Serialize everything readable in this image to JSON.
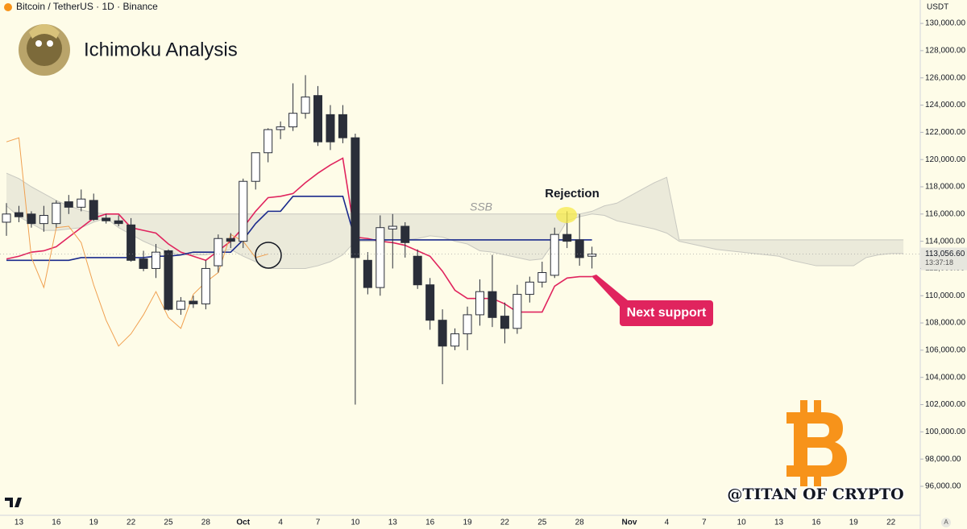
{
  "header": "Bitcoin / TetherUS · 1D · Binance",
  "title": "Ichimoku Analysis",
  "currency": "USDT",
  "watermark": "@TITAN OF CRYPTO",
  "auto_label": "A",
  "annotations": {
    "rejection": "Rejection",
    "ssb": "SSB",
    "next_support": "Next support"
  },
  "chart_data": {
    "type": "candlestick",
    "categories": [
      null,
      "13",
      null,
      null,
      "16",
      null,
      null,
      "19",
      null,
      null,
      "22",
      null,
      null,
      "25",
      null,
      null,
      "28",
      null,
      null,
      "Oct",
      null,
      null,
      "4",
      null,
      null,
      "7",
      null,
      null,
      "10",
      null,
      null,
      "13",
      null,
      null,
      "16",
      null,
      null,
      "19",
      null,
      null,
      "22",
      null,
      null,
      "25",
      null,
      null,
      "28",
      null,
      null,
      null,
      "Nov",
      null,
      null,
      "4",
      null,
      null,
      "7",
      null,
      null,
      "10",
      null,
      null,
      "13",
      null,
      null,
      "16",
      null,
      null,
      "19",
      null,
      null,
      "22",
      null
    ],
    "candles": {
      "up_color": "#ffffff",
      "down_color": "#2a2e39",
      "open": [
        115400,
        116100,
        116000,
        115300,
        115300,
        116900,
        116500,
        117000,
        115700,
        115500,
        115200,
        112700,
        112000,
        113300,
        109000,
        109600,
        109400,
        112200,
        114200,
        114000,
        118400,
        120500,
        122200,
        122400,
        123400,
        124700,
        123300,
        123300,
        121600,
        112600,
        110600,
        114900,
        115100,
        112900,
        110800,
        108200,
        106300,
        107200,
        108600,
        110300,
        108500,
        107600,
        110100,
        111000,
        111500,
        114500,
        114100,
        112900,
        null,
        null,
        null,
        null,
        null,
        null,
        null,
        null,
        null,
        null,
        null,
        null,
        null,
        null,
        null,
        null,
        null,
        null,
        null,
        null,
        null,
        null,
        null,
        null,
        null
      ],
      "high": [
        116800,
        116600,
        116200,
        116600,
        117000,
        117400,
        117800,
        117500,
        116000,
        115900,
        115700,
        113300,
        113800,
        113400,
        109900,
        110000,
        112600,
        114500,
        114600,
        118600,
        120500,
        122300,
        122800,
        125600,
        126200,
        125400,
        124000,
        124000,
        121900,
        113200,
        115900,
        116000,
        115400,
        113400,
        111300,
        109000,
        107600,
        109200,
        111200,
        113000,
        109500,
        110800,
        111400,
        112500,
        115000,
        116200,
        116000,
        113600,
        null,
        null,
        null,
        null,
        null,
        null,
        null,
        null,
        null,
        null,
        null,
        null,
        null,
        null,
        null,
        null,
        null,
        null,
        null,
        null,
        null,
        null,
        null,
        null,
        null
      ],
      "low": [
        114400,
        115400,
        115000,
        114700,
        115000,
        116000,
        116200,
        115500,
        115300,
        115100,
        112500,
        111800,
        111300,
        108900,
        108600,
        109100,
        109000,
        111700,
        113500,
        113500,
        117800,
        119800,
        121500,
        122100,
        123000,
        121000,
        120700,
        121200,
        102000,
        110100,
        110000,
        112000,
        112800,
        110500,
        107500,
        103500,
        106000,
        106000,
        107800,
        107700,
        106500,
        107200,
        109500,
        110600,
        111300,
        113500,
        112200,
        112000,
        null,
        null,
        null,
        null,
        null,
        null,
        null,
        null,
        null,
        null,
        null,
        null,
        null,
        null,
        null,
        null,
        null,
        null,
        null,
        null,
        null,
        null,
        null,
        null,
        null
      ],
      "close": [
        116000,
        115800,
        115300,
        115900,
        116800,
        116500,
        117100,
        115600,
        115500,
        115300,
        112600,
        112000,
        113200,
        109000,
        109600,
        109400,
        112000,
        114200,
        114000,
        118400,
        120500,
        122200,
        122400,
        123400,
        124600,
        121300,
        121300,
        121600,
        112800,
        110600,
        115000,
        115100,
        113900,
        110800,
        108200,
        106300,
        107200,
        108600,
        110300,
        108400,
        107600,
        110100,
        111000,
        111700,
        114500,
        114000,
        112800,
        113056.6,
        null,
        null,
        null,
        null,
        null,
        null,
        null,
        null,
        null,
        null,
        null,
        null,
        null,
        null,
        null,
        null,
        null,
        null,
        null,
        null,
        null,
        null,
        null,
        null,
        null
      ]
    },
    "lines": [
      {
        "color": "#e0245e",
        "values": [
          112700,
          112900,
          113200,
          113300,
          113600,
          114300,
          115000,
          115700,
          116000,
          116000,
          115000,
          114800,
          114600,
          113800,
          113200,
          112900,
          112600,
          113300,
          114000,
          115000,
          116200,
          117200,
          117300,
          117500,
          118300,
          119000,
          119600,
          120100,
          114300,
          114200,
          114000,
          113900,
          113700,
          113300,
          112900,
          111800,
          110400,
          109800,
          109800,
          109800,
          109400,
          108800,
          108800,
          108800,
          110700,
          111300,
          111400,
          111400,
          null,
          null,
          null,
          null,
          null,
          null,
          null,
          null,
          null,
          null,
          null,
          null,
          null,
          null,
          null,
          null,
          null,
          null,
          null,
          null,
          null,
          null,
          null,
          null,
          null
        ]
      },
      {
        "color": "#1a2a8c",
        "values": [
          112600,
          112600,
          112600,
          112600,
          112600,
          112600,
          112800,
          112800,
          112800,
          112800,
          112800,
          112800,
          112900,
          112900,
          113000,
          113200,
          113200,
          113200,
          113200,
          114100,
          115300,
          116200,
          116200,
          117300,
          117300,
          117300,
          117300,
          117300,
          114100,
          114100,
          114100,
          114100,
          114100,
          114100,
          114100,
          114100,
          114100,
          114100,
          114100,
          114100,
          114100,
          114100,
          114100,
          114100,
          114100,
          114100,
          114100,
          114100,
          null,
          null,
          null,
          null,
          null,
          null,
          null,
          null,
          null,
          null,
          null,
          null,
          null,
          null,
          null,
          null,
          null,
          null,
          null,
          null,
          null,
          null,
          null,
          null,
          null
        ]
      },
      {
        "color": "#f0a050",
        "values": [
          121300,
          121600,
          112800,
          110600,
          115000,
          115100,
          113900,
          110800,
          108200,
          106300,
          107200,
          108600,
          110300,
          108400,
          107600,
          110100,
          111000,
          111700,
          114500,
          114000,
          112800,
          113056.6,
          null,
          null,
          null,
          null,
          null,
          null,
          null,
          null,
          null,
          null,
          null,
          null,
          null,
          null,
          null,
          null,
          null,
          null,
          null,
          null,
          null,
          null,
          null,
          null,
          null,
          null,
          null,
          null,
          null,
          null,
          null,
          null,
          null,
          null,
          null,
          null,
          null,
          null,
          null,
          null,
          null,
          null,
          null,
          null,
          null,
          null,
          null,
          null,
          null,
          null,
          null
        ]
      }
    ],
    "cloud": {
      "color": "#c8c8c0",
      "upper": [
        119000,
        118600,
        118000,
        117500,
        117000,
        116600,
        116300,
        116100,
        116000,
        116000,
        116000,
        116000,
        116000,
        116000,
        116000,
        116000,
        116000,
        116000,
        116000,
        116000,
        116000,
        116000,
        116000,
        116000,
        116000,
        116000,
        116000,
        116000,
        116000,
        116000,
        116000,
        116000,
        116000,
        116000,
        116000,
        116000,
        116000,
        116000,
        116000,
        116000,
        116000,
        116000,
        116000,
        116000,
        116000,
        116000,
        116000,
        116200,
        116600,
        116800,
        117300,
        117800,
        118300,
        118700,
        114100,
        114100,
        114100,
        114100,
        114100,
        114100,
        114100,
        114100,
        114100,
        114100,
        114100,
        114100,
        114100,
        114100,
        114100,
        114100,
        114100,
        114100,
        114100
      ],
      "lower": [
        116600,
        115800,
        115300,
        114800,
        114800,
        114900,
        115000,
        115400,
        115700,
        115000,
        114500,
        114000,
        113600,
        113200,
        113000,
        113000,
        113000,
        113200,
        113400,
        112900,
        112500,
        112000,
        112000,
        112000,
        112000,
        112200,
        112500,
        113000,
        114000,
        114000,
        114000,
        114100,
        114100,
        114200,
        114400,
        114300,
        114000,
        113800,
        113300,
        113200,
        113000,
        112800,
        112600,
        112700,
        114000,
        115500,
        115800,
        116000,
        115900,
        115500,
        115300,
        115100,
        114900,
        114600,
        114000,
        113800,
        113600,
        113400,
        113300,
        113200,
        113100,
        113000,
        112900,
        112600,
        112400,
        112200,
        112200,
        112200,
        112200,
        112800,
        113000,
        113100,
        113100
      ]
    },
    "last_price": {
      "value": 113056.6,
      "label": "113,056.60"
    },
    "countdown": "13:37:18",
    "ylim": [
      93870,
      131720
    ],
    "yticks": [
      {
        "value": 96000,
        "label": "96,000.00"
      },
      {
        "value": 98000,
        "label": "98,000.00"
      },
      {
        "value": 100000,
        "label": "100,000.00"
      },
      {
        "value": 102000,
        "label": "102,000.00"
      },
      {
        "value": 104000,
        "label": "104,000.00"
      },
      {
        "value": 106000,
        "label": "106,000.00"
      },
      {
        "value": 108000,
        "label": "108,000.00"
      },
      {
        "value": 110000,
        "label": "110,000.00"
      },
      {
        "value": 112000,
        "label": "112,000.00"
      },
      {
        "value": 114000,
        "label": "114,000.00"
      },
      {
        "value": 116000,
        "label": "116,000.00"
      },
      {
        "value": 118000,
        "label": "118,000.00"
      },
      {
        "value": 120000,
        "label": "120,000.00"
      },
      {
        "value": 122000,
        "label": "122,000.00"
      },
      {
        "value": 124000,
        "label": "124,000.00"
      },
      {
        "value": 126000,
        "label": "126,000.00"
      },
      {
        "value": 128000,
        "label": "128,000.00"
      },
      {
        "value": 130000,
        "label": "130,000.00"
      }
    ],
    "grid": false
  }
}
